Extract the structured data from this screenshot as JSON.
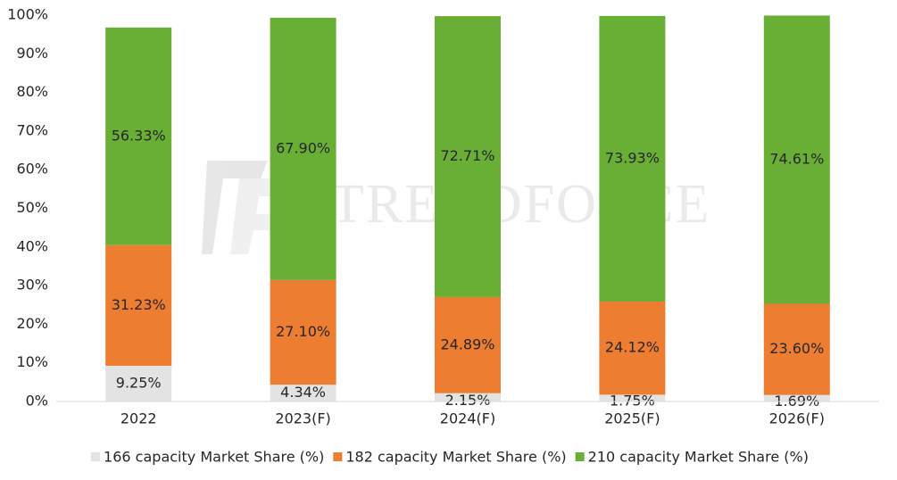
{
  "chart_data": {
    "type": "stacked_bar",
    "watermark": "TRENDFORCE",
    "categories": [
      "2022",
      "2023(F)",
      "2024(F)",
      "2025(F)",
      "2026(F)"
    ],
    "series": [
      {
        "name": "166 capacity Market Share (%)",
        "color": "#e3e3e3",
        "values": [
          9.25,
          4.34,
          2.15,
          1.75,
          1.69
        ],
        "value_labels": [
          "9.25%",
          "4.34%",
          "2.15%",
          "1.75%",
          "1.69%"
        ]
      },
      {
        "name": "182 capacity Market Share (%)",
        "color": "#ed7d31",
        "values": [
          31.23,
          27.1,
          24.89,
          24.12,
          23.6
        ],
        "value_labels": [
          "31.23%",
          "27.10%",
          "24.89%",
          "24.12%",
          "23.60%"
        ]
      },
      {
        "name": "210 capacity Market Share (%)",
        "color": "#6aaf35",
        "values": [
          56.33,
          67.9,
          72.71,
          73.93,
          74.61
        ],
        "value_labels": [
          "56.33%",
          "67.90%",
          "72.71%",
          "73.93%",
          "74.61%"
        ]
      }
    ],
    "ylim": [
      0,
      100
    ],
    "yticks": [
      {
        "value": 0,
        "label": "0%"
      },
      {
        "value": 10,
        "label": "10%"
      },
      {
        "value": 20,
        "label": "20%"
      },
      {
        "value": 30,
        "label": "30%"
      },
      {
        "value": 40,
        "label": "40%"
      },
      {
        "value": 50,
        "label": "50%"
      },
      {
        "value": 60,
        "label": "60%"
      },
      {
        "value": 70,
        "label": "70%"
      },
      {
        "value": 80,
        "label": "80%"
      },
      {
        "value": 90,
        "label": "90%"
      },
      {
        "value": 100,
        "label": "100%"
      }
    ],
    "grid": false,
    "legend": "bottom"
  }
}
